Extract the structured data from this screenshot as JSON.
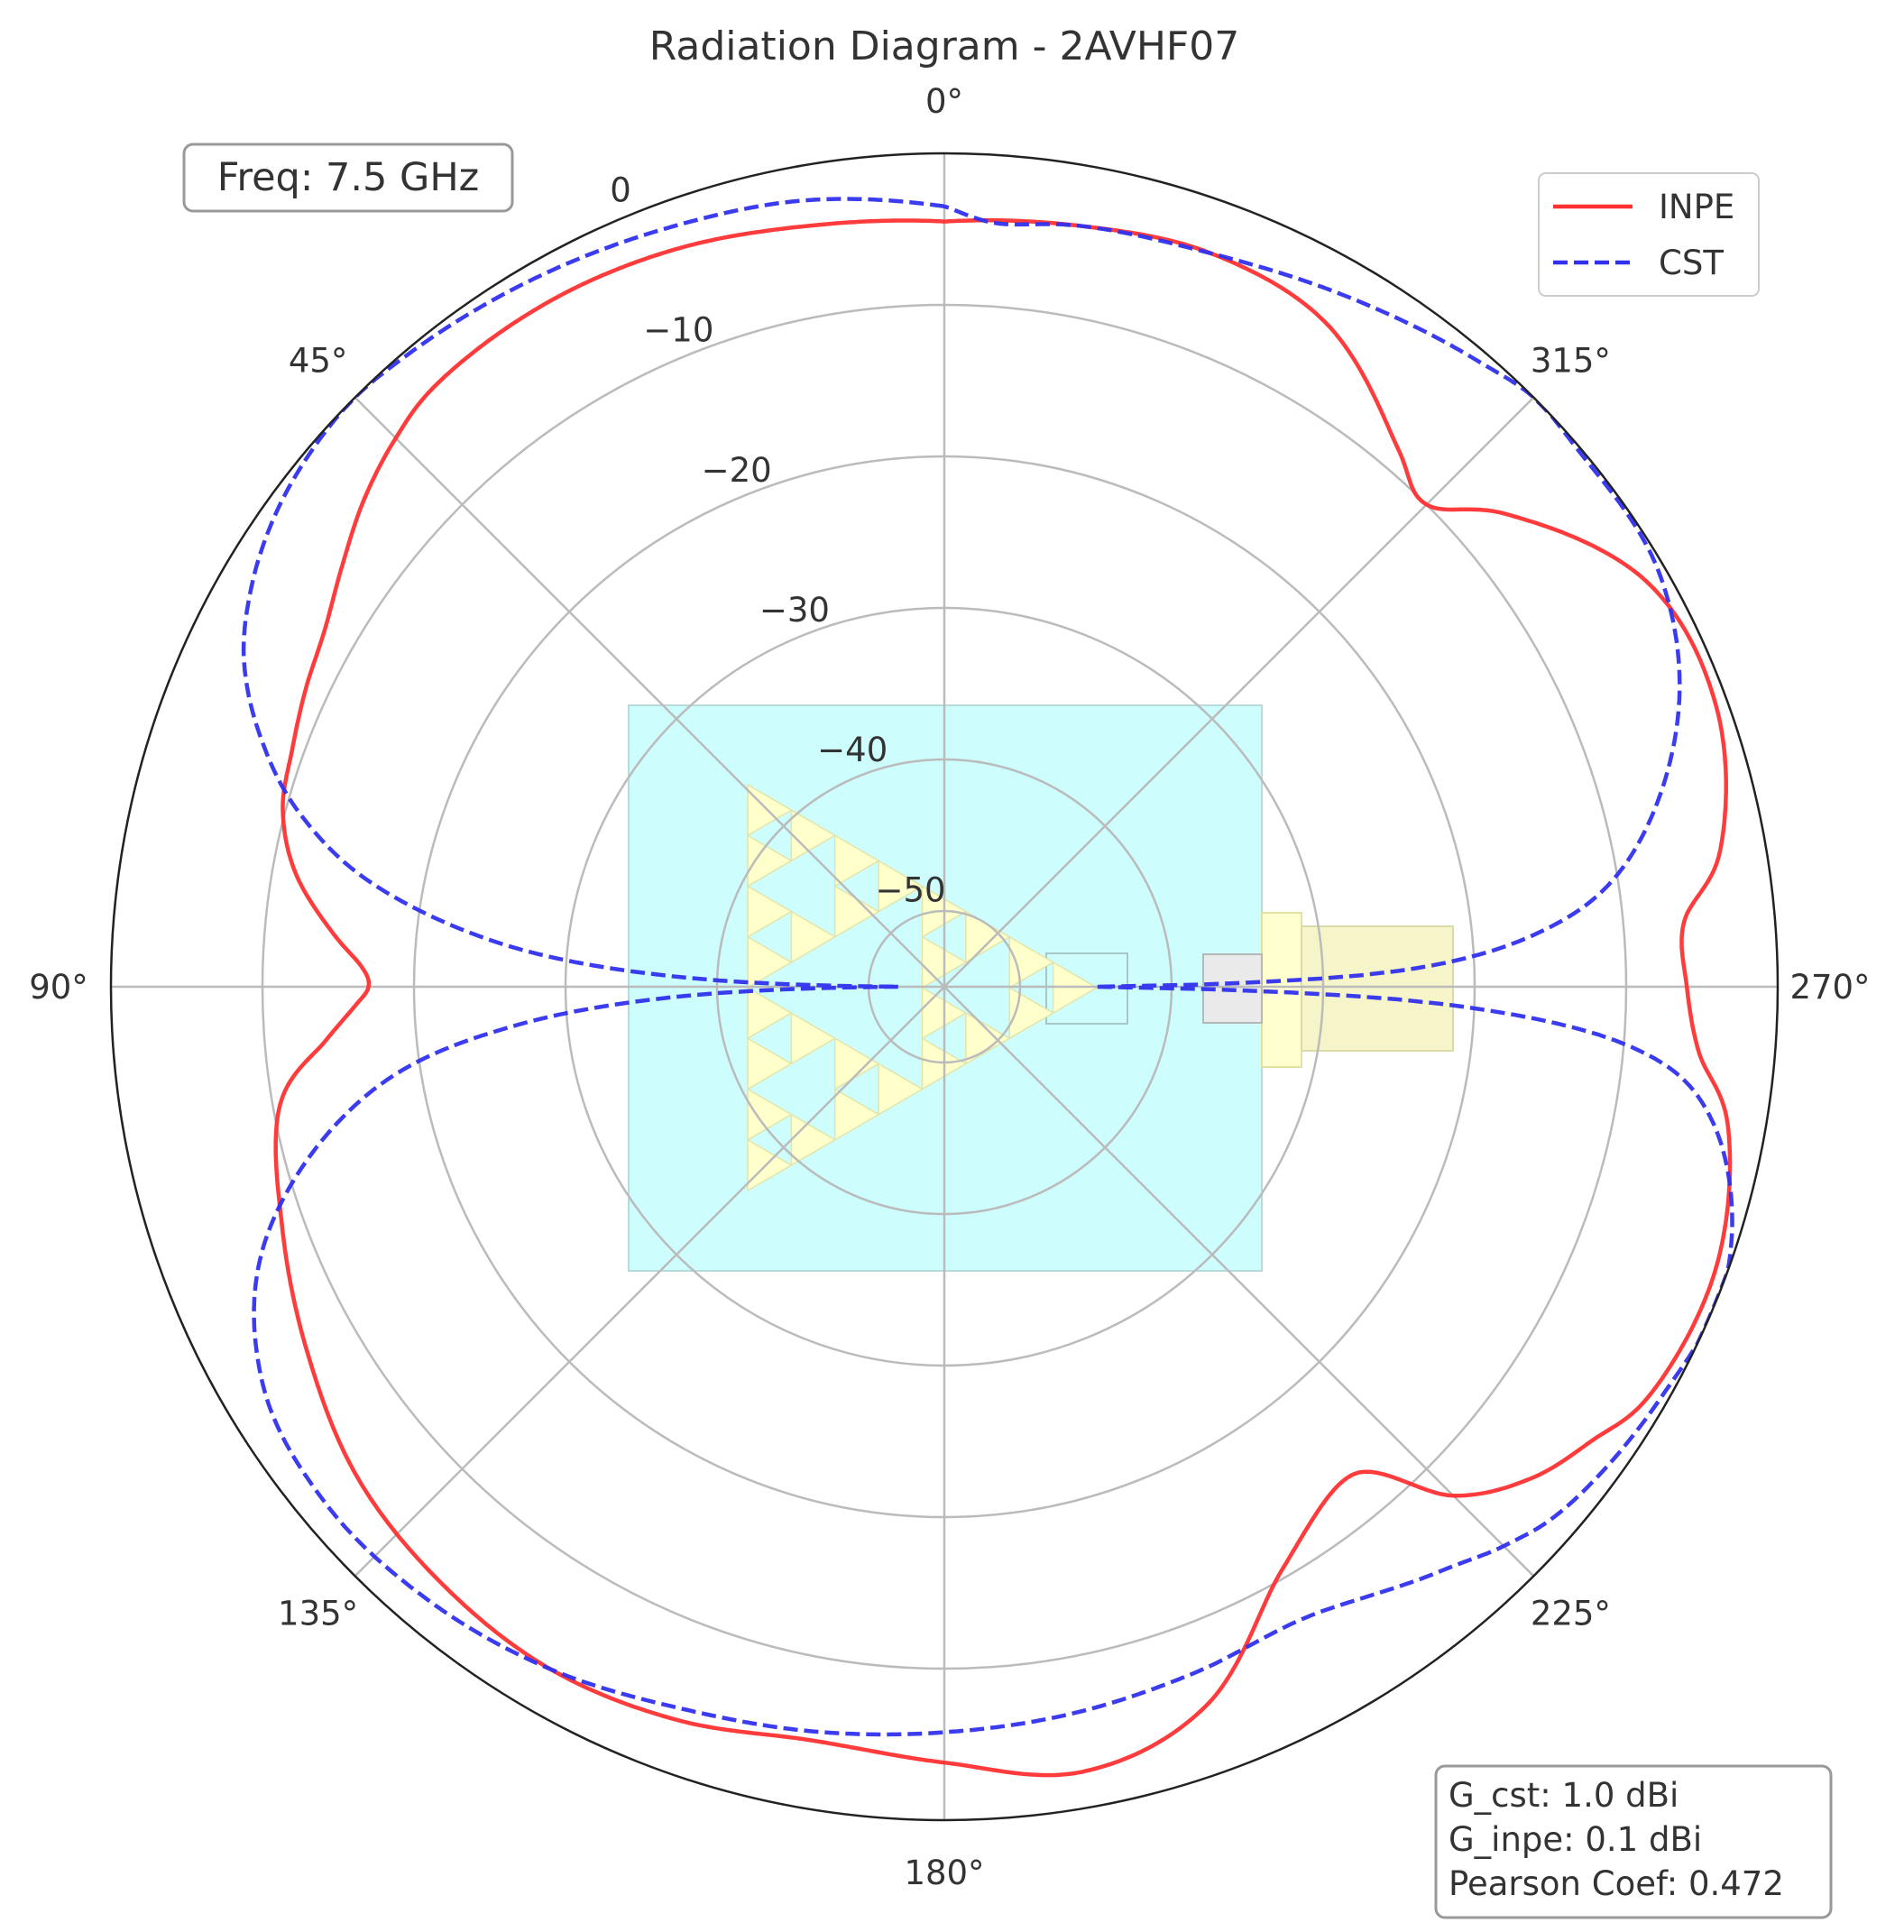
{
  "chart_data": {
    "type": "polar-line",
    "title": "Radiation Diagram - 2AVHF07",
    "frequency_label": "Freq: 7.5 GHz",
    "r_range": [
      -55,
      0
    ],
    "r_ticks": [
      0,
      -10,
      -20,
      -30,
      -40,
      -50
    ],
    "r_tick_labels": [
      "0",
      "−10",
      "−20",
      "−30",
      "−40",
      "−50"
    ],
    "angle_direction": "counterclockwise",
    "zero_location": "top",
    "angle_ticks": [
      0,
      45,
      90,
      135,
      180,
      225,
      270,
      315
    ],
    "angle_tick_labels": [
      "0°",
      "45°",
      "90°",
      "135°",
      "180°",
      "225°",
      "270°",
      "315°"
    ],
    "grid": true,
    "legend_placement": "top-right",
    "stats_lines": [
      "G_cst: 1.0 dBi",
      "G_inpe: 0.1 dBi",
      "Pearson Coef: 0.472"
    ],
    "series": [
      {
        "name": "INPE",
        "color": "#ff3030",
        "style": "solid",
        "angles_deg": [
          0,
          10,
          20,
          30,
          40,
          45,
          50,
          55,
          60,
          65,
          70,
          75,
          80,
          85,
          88,
          90,
          92,
          95,
          100,
          110,
          120,
          130,
          140,
          150,
          160,
          170,
          180,
          190,
          200,
          210,
          220,
          225,
          230,
          235,
          240,
          250,
          260,
          265,
          270,
          275,
          280,
          290,
          300,
          310,
          315,
          320,
          330,
          340,
          350,
          360
        ],
        "values": [
          -4.5,
          -4.0,
          -3.2,
          -2.8,
          -3.0,
          -3.8,
          -5.0,
          -6.5,
          -7.8,
          -8.5,
          -9.2,
          -9.8,
          -11.5,
          -14.5,
          -16.5,
          -17.0,
          -16.0,
          -14.0,
          -10.5,
          -8.5,
          -6.5,
          -4.5,
          -3.5,
          -3.0,
          -3.5,
          -4.5,
          -3.8,
          -2.4,
          -4.5,
          -10.5,
          -13.0,
          -7.5,
          -4.5,
          -2.8,
          -1.2,
          -0.8,
          -2.5,
          -5.0,
          -6.0,
          -6.0,
          -3.0,
          -0.8,
          -1.5,
          -6.5,
          -10.0,
          -8.5,
          -4.5,
          -3.5,
          -4.0,
          -4.5
        ]
      },
      {
        "name": "CST",
        "color": "#3030ee",
        "style": "dashed",
        "angles_deg": [
          0,
          10,
          20,
          30,
          40,
          45,
          50,
          55,
          60,
          65,
          70,
          75,
          80,
          85,
          88,
          89.5,
          90,
          90.5,
          92,
          95,
          100,
          110,
          120,
          130,
          140,
          150,
          160,
          170,
          180,
          190,
          200,
          210,
          220,
          225,
          230,
          240,
          250,
          260,
          265,
          268,
          269.5,
          270,
          270.5,
          272,
          275,
          280,
          290,
          300,
          310,
          315,
          320,
          330,
          340,
          350,
          356,
          360
        ],
        "values": [
          -3.5,
          -2.3,
          -1.7,
          -1.0,
          -0.3,
          0.0,
          -0.3,
          -1.0,
          -2.2,
          -4.0,
          -7.0,
          -11.0,
          -17.0,
          -27.0,
          -38.0,
          -48.0,
          -52.0,
          -48.0,
          -38.0,
          -27.0,
          -17.0,
          -7.5,
          -3.0,
          -1.8,
          -2.1,
          -3.0,
          -4.3,
          -5.1,
          -5.8,
          -6.3,
          -6.8,
          -7.0,
          -4.5,
          -2.8,
          -1.5,
          -0.5,
          0.0,
          -3.5,
          -9.5,
          -22.0,
          -38.0,
          -45.0,
          -38.0,
          -25.0,
          -16.0,
          -9.5,
          -3.5,
          -0.5,
          -0.2,
          0.0,
          -0.8,
          -2.3,
          -3.5,
          -4.0,
          -4.5,
          -3.5
        ]
      }
    ]
  }
}
